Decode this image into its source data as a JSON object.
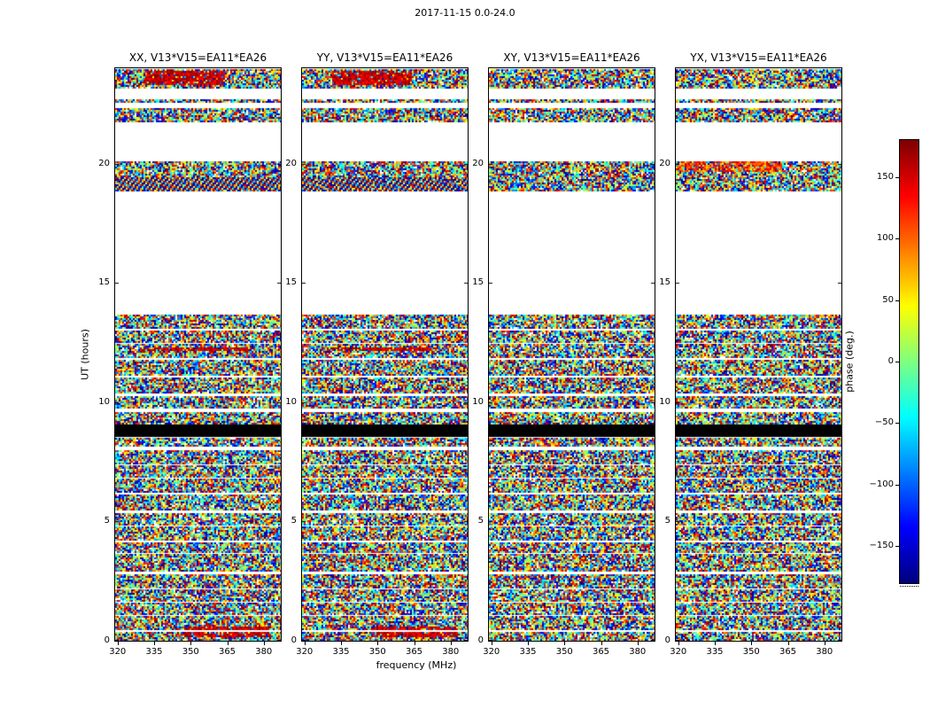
{
  "figure": {
    "title": "2017-11-15 0.0-24.0",
    "xlabel": "frequency (MHz)",
    "ylabel": "UT (hours)",
    "colorbar_label": "phase (deg.)",
    "background": "#ffffff"
  },
  "chart_data": {
    "type": "heatmap",
    "title": "2017-11-15 0.0-24.0",
    "xlabel": "frequency (MHz)",
    "ylabel": "UT (hours)",
    "panels": [
      {
        "title": "XX, V13*V15=EA11*EA26",
        "correlation": "XX"
      },
      {
        "title": "YY, V13*V15=EA11*EA26",
        "correlation": "YY"
      },
      {
        "title": "XY, V13*V15=EA11*EA26",
        "correlation": "XY"
      },
      {
        "title": "YX, V13*V15=EA11*EA26",
        "correlation": "YX"
      }
    ],
    "x_axis": {
      "label": "frequency (MHz)",
      "range": [
        319,
        387
      ],
      "ticks": [
        320,
        335,
        350,
        365,
        380
      ]
    },
    "y_axis": {
      "label": "UT (hours)",
      "range": [
        0,
        24
      ],
      "ticks": [
        0,
        5,
        10,
        15,
        20
      ]
    },
    "colorbar": {
      "label": "phase (deg.)",
      "colormap": "jet",
      "range": [
        -180,
        180
      ],
      "ticks": [
        150,
        100,
        50,
        0,
        -50,
        -100,
        -150
      ]
    },
    "content": "Visibility phase versus frequency (x) and UT time (y) for baseline V13*V15=EA11*EA26 on 2017-11-15; phase appears as random speckle noise spanning -180..180 deg inside observed time bands; white regions = no data; a solid black band appears near 8.6-9.0 h UT in all four correlation panels.",
    "time_bands": [
      {
        "t": [
          0.0,
          0.38
        ],
        "type": "noise"
      },
      {
        "t": [
          0.46,
          1.04
        ],
        "type": "noise"
      },
      {
        "t": [
          1.12,
          1.6
        ],
        "type": "noise"
      },
      {
        "t": [
          1.68,
          2.14
        ],
        "type": "noise"
      },
      {
        "t": [
          2.22,
          2.8
        ],
        "type": "noise"
      },
      {
        "t": [
          2.88,
          3.64
        ],
        "type": "noise"
      },
      {
        "t": [
          3.72,
          4.14
        ],
        "type": "noise"
      },
      {
        "t": [
          4.22,
          4.8
        ],
        "type": "noise"
      },
      {
        "t": [
          4.88,
          5.36
        ],
        "type": "noise"
      },
      {
        "t": [
          5.48,
          6.14
        ],
        "type": "noise"
      },
      {
        "t": [
          6.22,
          6.8
        ],
        "type": "noise"
      },
      {
        "t": [
          6.88,
          7.34
        ],
        "type": "noise"
      },
      {
        "t": [
          7.42,
          7.98
        ],
        "type": "noise"
      },
      {
        "t": [
          8.15,
          8.5
        ],
        "type": "noise"
      },
      {
        "t": [
          8.55,
          9.05
        ],
        "type": "black"
      },
      {
        "t": [
          9.12,
          9.6
        ],
        "type": "noise"
      },
      {
        "t": [
          9.72,
          10.26
        ],
        "type": "noise"
      },
      {
        "t": [
          10.38,
          11.04
        ],
        "type": "noise"
      },
      {
        "t": [
          11.12,
          11.76
        ],
        "type": "noise"
      },
      {
        "t": [
          11.85,
          12.44
        ],
        "type": "noise"
      },
      {
        "t": [
          12.52,
          13.02
        ],
        "type": "noise"
      },
      {
        "t": [
          13.1,
          13.68
        ],
        "type": "noise"
      },
      {
        "t": [
          18.85,
          20.1
        ],
        "type": "noise"
      },
      {
        "t": [
          21.78,
          22.32
        ],
        "type": "noise"
      },
      {
        "t": [
          22.55,
          22.7
        ],
        "type": "noise"
      },
      {
        "t": [
          23.2,
          23.97
        ],
        "type": "noise"
      }
    ],
    "features": [
      {
        "panels": [
          0,
          1
        ],
        "t": [
          18.9,
          19.5
        ],
        "f": [
          319,
          387
        ],
        "mode": "stripes"
      },
      {
        "panels": [
          0,
          1
        ],
        "t": [
          23.3,
          23.95
        ],
        "f": [
          331,
          364
        ],
        "mode": "red"
      },
      {
        "panels": [
          0,
          1
        ],
        "t": [
          12.15,
          12.36
        ],
        "f": [
          329,
          375
        ],
        "mode": "red"
      },
      {
        "panels": [
          0,
          1
        ],
        "t": [
          0.22,
          0.6
        ],
        "f": [
          347,
          383
        ],
        "mode": "red"
      },
      {
        "panels": [
          3
        ],
        "t": [
          19.68,
          20.1
        ],
        "f": [
          319,
          362
        ],
        "mode": "warm"
      }
    ]
  }
}
